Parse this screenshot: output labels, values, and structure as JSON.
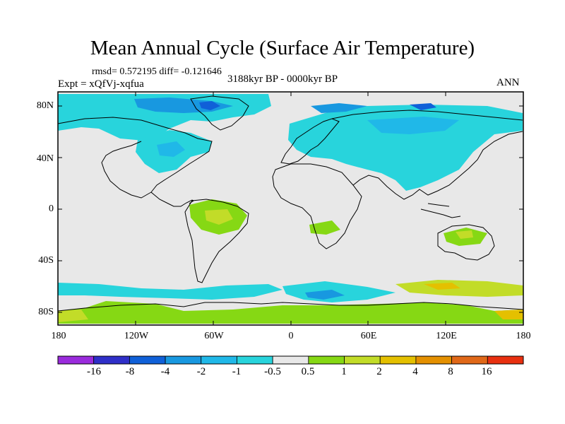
{
  "title": "Mean Annual Cycle (Surface Air Temperature)",
  "stats": {
    "rmsd_label": "rmsd= 0.572195 diff= -0.121646"
  },
  "experiment": "Expt = xQfVj-xqfua",
  "period": "3188kyr BP - 0000kyr BP",
  "season": "ANN",
  "axes": {
    "y_ticks": [
      "80N",
      "40N",
      "0",
      "40S",
      "80S"
    ],
    "x_ticks": [
      "180",
      "120W",
      "60W",
      "0",
      "60E",
      "120E",
      "180"
    ]
  },
  "colorbar": {
    "tick_labels": [
      "-16",
      "-8",
      "-4",
      "-2",
      "-1",
      "-0.5",
      "0.5",
      "1",
      "2",
      "4",
      "8",
      "16"
    ],
    "colors": [
      "#9a2bdc",
      "#2f2fc8",
      "#1060d8",
      "#1898e0",
      "#20b8e8",
      "#28d4dc",
      "#e8e8e8",
      "#86d814",
      "#c2dc28",
      "#e4c000",
      "#e49000",
      "#e06818",
      "#e83010"
    ]
  },
  "palette": {
    "neutral": "#e8e8e8",
    "coast": "#000000"
  }
}
